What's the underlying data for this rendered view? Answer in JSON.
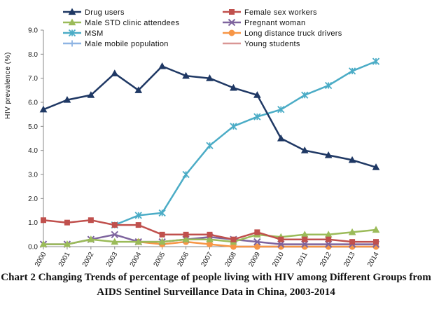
{
  "chart_data": {
    "type": "line",
    "ylabel": "HIV prevalence (%)",
    "xlabel": "",
    "ylim": [
      0,
      9
    ],
    "yticks": [
      "0.0",
      "1.0",
      "2.0",
      "3.0",
      "4.0",
      "5.0",
      "6.0",
      "7.0",
      "8.0",
      "9.0"
    ],
    "categories": [
      "2000",
      "2001",
      "2002",
      "2003",
      "2004",
      "2005",
      "2006",
      "2007",
      "2008",
      "2009",
      "2010",
      "2011",
      "2012",
      "2013",
      "2014"
    ],
    "series": [
      {
        "name": "Drug users",
        "color": "#1f3864",
        "marker": "triangle-filled",
        "values": [
          5.7,
          6.1,
          6.3,
          7.2,
          6.5,
          7.5,
          7.1,
          7.0,
          6.6,
          6.3,
          4.5,
          4.0,
          3.8,
          3.6,
          3.3
        ]
      },
      {
        "name": "Female sex workers",
        "color": "#c0504d",
        "marker": "square",
        "values": [
          1.1,
          1.0,
          1.1,
          0.9,
          0.9,
          0.5,
          0.5,
          0.5,
          0.3,
          0.6,
          0.3,
          0.3,
          0.3,
          0.2,
          0.2
        ]
      },
      {
        "name": "Male STD clinic attendees",
        "color": "#9bbb59",
        "marker": "triangle",
        "values": [
          0.1,
          0.1,
          0.3,
          0.2,
          0.2,
          0.2,
          0.3,
          0.3,
          0.2,
          0.5,
          0.4,
          0.5,
          0.5,
          0.6,
          0.7
        ]
      },
      {
        "name": "Pregnant woman",
        "color": "#7e649e",
        "marker": "x",
        "values": [
          0.1,
          0.1,
          0.3,
          0.5,
          0.2,
          0.2,
          0.3,
          0.4,
          0.3,
          0.2,
          0.1,
          0.1,
          0.1,
          0.1,
          0.1
        ]
      },
      {
        "name": "MSM",
        "color": "#4bacc6",
        "marker": "star",
        "values": [
          null,
          null,
          null,
          0.9,
          1.3,
          1.4,
          3.0,
          4.2,
          5.0,
          5.4,
          5.7,
          6.3,
          6.7,
          7.3,
          7.7
        ]
      },
      {
        "name": "Long distance truck drivers",
        "color": "#f79646",
        "marker": "circle",
        "values": [
          null,
          null,
          null,
          null,
          0.2,
          0.1,
          0.2,
          0.1,
          0.0,
          0.0,
          0.0,
          0.0,
          0.0,
          0.0,
          0.0
        ]
      },
      {
        "name": "Male mobile population",
        "color": "#8eb4e3",
        "marker": "plus",
        "values": [
          null,
          null,
          null,
          null,
          null,
          null,
          null,
          null,
          0.0,
          0.0,
          0.0,
          0.0,
          0.0,
          0.0,
          0.0
        ]
      },
      {
        "name": "Young students",
        "color": "#d99694",
        "marker": "dash",
        "values": [
          null,
          null,
          null,
          null,
          null,
          null,
          null,
          null,
          0.0,
          0.0,
          0.0,
          0.0,
          0.0,
          0.0,
          0.0
        ]
      }
    ],
    "legend_position": "top",
    "caption": "Chart 2 Changing Trends of percentage of people living with HIV among Different Groups from AIDS Sentinel Surveillance Data in China, 2003-2014"
  }
}
